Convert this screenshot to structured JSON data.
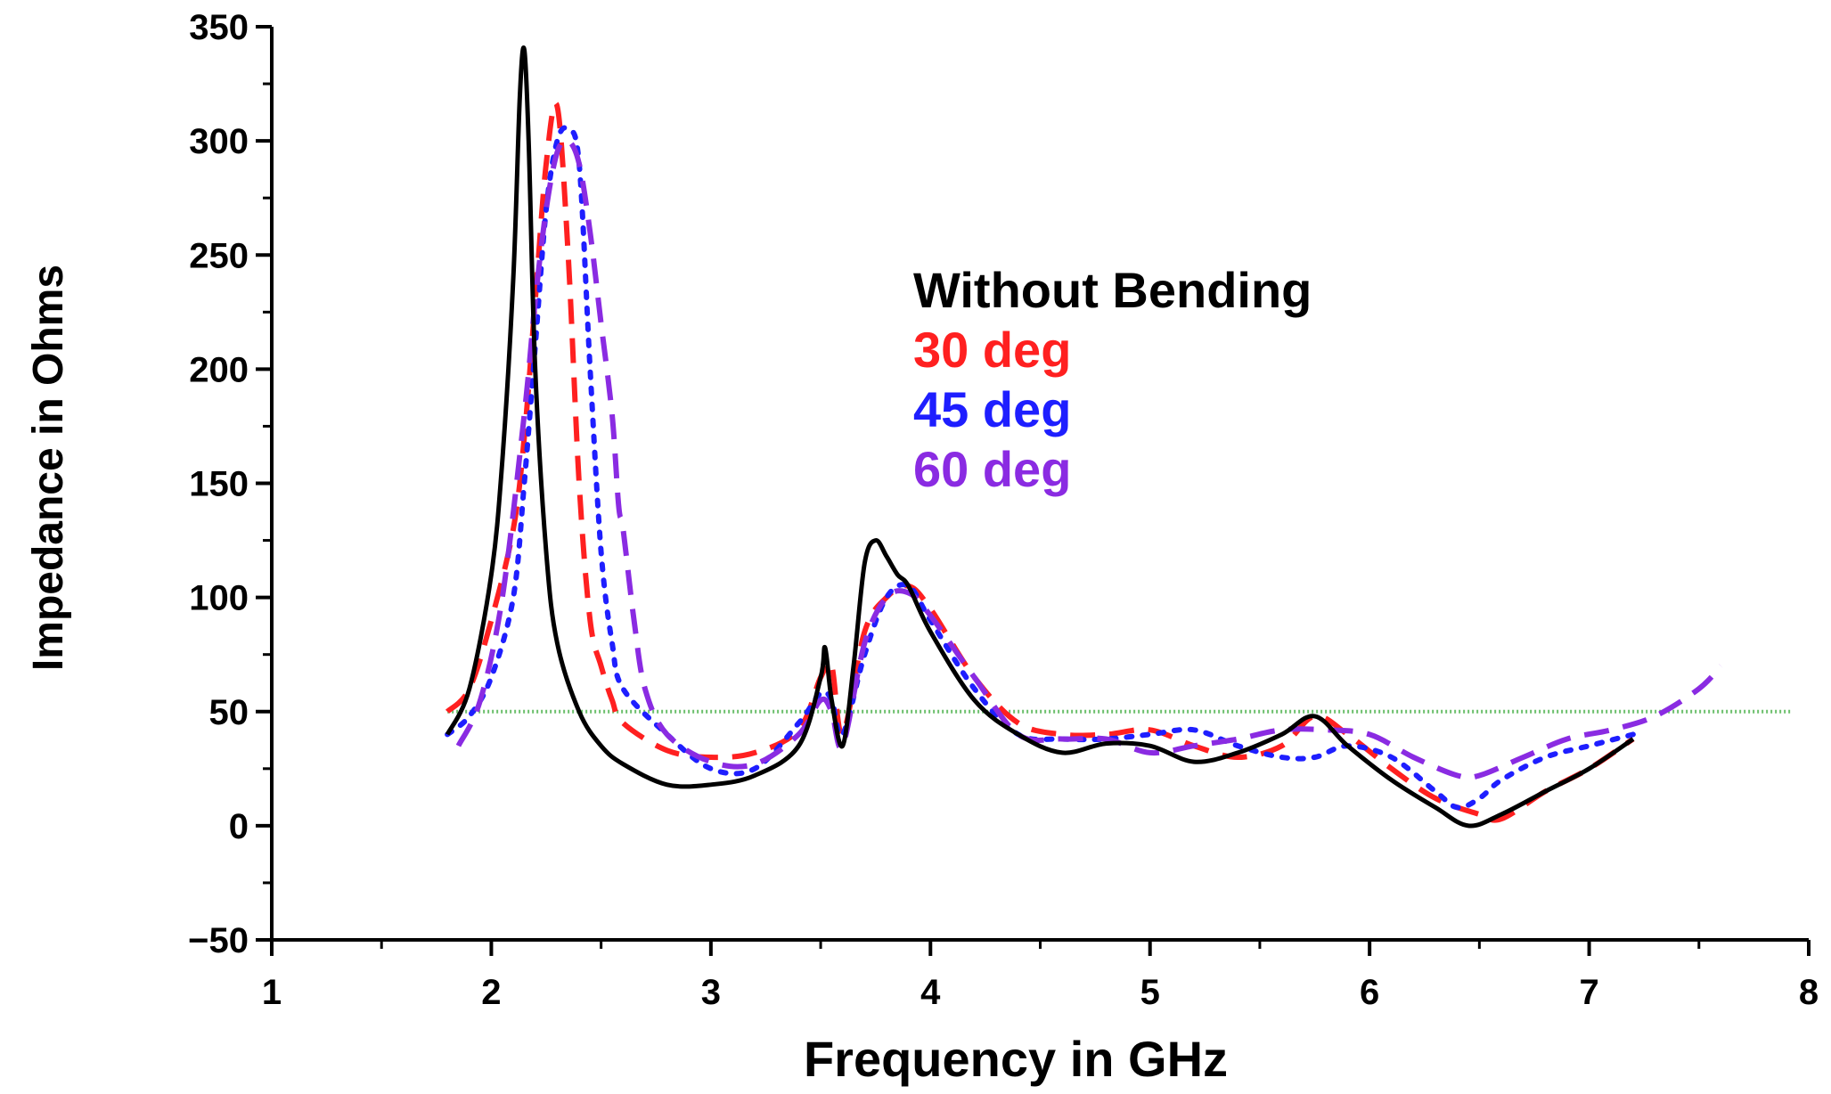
{
  "chart_data": {
    "type": "line",
    "title": "",
    "xlabel": "Frequency in GHz",
    "ylabel": "Impedance in Ohms",
    "xlim": [
      1,
      8
    ],
    "ylim": [
      -50,
      350
    ],
    "xticks": [
      1,
      2,
      3,
      4,
      5,
      6,
      7,
      8
    ],
    "yticks": [
      -50,
      0,
      50,
      100,
      150,
      200,
      250,
      300,
      350
    ],
    "xtick_labels": [
      "1",
      "2",
      "3",
      "4",
      "5",
      "6",
      "7",
      "8"
    ],
    "ytick_labels": [
      "−50",
      "0",
      "50",
      "100",
      "150",
      "200",
      "250",
      "300",
      "350"
    ],
    "legend_position": "upper-middle",
    "reference_line": {
      "y": 50,
      "color": "#6cbf6c",
      "style": "dotted"
    },
    "series": [
      {
        "name": "Without Bending",
        "color": "#000000",
        "style": "solid",
        "x": [
          1.8,
          1.9,
          2.0,
          2.05,
          2.1,
          2.13,
          2.15,
          2.17,
          2.2,
          2.25,
          2.3,
          2.4,
          2.5,
          2.6,
          2.8,
          3.0,
          3.2,
          3.4,
          3.5,
          3.52,
          3.55,
          3.6,
          3.65,
          3.7,
          3.75,
          3.8,
          3.85,
          3.9,
          4.0,
          4.2,
          4.4,
          4.6,
          4.8,
          5.0,
          5.2,
          5.4,
          5.6,
          5.75,
          5.9,
          6.1,
          6.3,
          6.45,
          6.6,
          6.8,
          7.0,
          7.2
        ],
        "y": [
          40,
          60,
          110,
          160,
          240,
          320,
          340,
          300,
          200,
          120,
          80,
          50,
          35,
          27,
          18,
          18,
          22,
          35,
          65,
          78,
          55,
          35,
          70,
          115,
          125,
          118,
          110,
          105,
          85,
          55,
          40,
          32,
          36,
          35,
          28,
          32,
          40,
          48,
          35,
          20,
          8,
          0,
          5,
          15,
          25,
          38
        ]
      },
      {
        "name": "30 deg",
        "color": "#ff2020",
        "style": "dashed",
        "x": [
          1.8,
          1.9,
          2.0,
          2.1,
          2.15,
          2.2,
          2.25,
          2.3,
          2.35,
          2.4,
          2.45,
          2.5,
          2.55,
          2.6,
          2.8,
          3.0,
          3.2,
          3.4,
          3.5,
          3.55,
          3.6,
          3.7,
          3.8,
          3.9,
          4.0,
          4.2,
          4.4,
          4.6,
          4.8,
          5.0,
          5.2,
          5.4,
          5.6,
          5.75,
          5.9,
          6.1,
          6.3,
          6.5,
          6.6,
          6.8,
          7.0,
          7.2
        ],
        "y": [
          50,
          60,
          90,
          130,
          170,
          230,
          290,
          315,
          250,
          150,
          90,
          70,
          55,
          45,
          33,
          30,
          32,
          42,
          65,
          70,
          40,
          85,
          100,
          105,
          95,
          65,
          45,
          40,
          40,
          42,
          35,
          30,
          35,
          48,
          40,
          25,
          12,
          5,
          3,
          15,
          25,
          38
        ]
      },
      {
        "name": "45 deg",
        "color": "#1e1eff",
        "style": "dotted",
        "x": [
          1.8,
          1.9,
          2.0,
          2.1,
          2.15,
          2.2,
          2.25,
          2.3,
          2.35,
          2.4,
          2.45,
          2.5,
          2.55,
          2.6,
          2.8,
          3.0,
          3.2,
          3.4,
          3.5,
          3.55,
          3.6,
          3.7,
          3.8,
          3.9,
          4.0,
          4.2,
          4.4,
          4.6,
          4.8,
          5.0,
          5.2,
          5.4,
          5.6,
          5.75,
          5.9,
          6.1,
          6.3,
          6.4,
          6.5,
          6.6,
          6.8,
          7.0,
          7.2
        ],
        "y": [
          40,
          48,
          65,
          100,
          150,
          210,
          270,
          300,
          305,
          290,
          200,
          120,
          80,
          60,
          40,
          25,
          25,
          45,
          58,
          55,
          40,
          75,
          100,
          105,
          90,
          60,
          40,
          38,
          38,
          40,
          42,
          35,
          30,
          30,
          35,
          30,
          15,
          8,
          12,
          20,
          30,
          35,
          40
        ]
      },
      {
        "name": "60 deg",
        "color": "#8a2be2",
        "style": "dashed",
        "x": [
          1.85,
          1.95,
          2.05,
          2.15,
          2.2,
          2.25,
          2.3,
          2.35,
          2.4,
          2.45,
          2.5,
          2.55,
          2.58,
          2.6,
          2.65,
          2.7,
          2.8,
          3.0,
          3.2,
          3.4,
          3.5,
          3.55,
          3.6,
          3.7,
          3.8,
          3.9,
          4.0,
          4.2,
          4.4,
          4.6,
          4.8,
          5.0,
          5.2,
          5.4,
          5.6,
          5.8,
          6.0,
          6.2,
          6.4,
          6.5,
          6.7,
          6.9,
          7.1,
          7.3,
          7.5,
          7.6
        ],
        "y": [
          35,
          55,
          100,
          180,
          230,
          270,
          295,
          300,
          290,
          260,
          220,
          180,
          140,
          130,
          90,
          60,
          40,
          28,
          27,
          40,
          55,
          50,
          35,
          80,
          100,
          102,
          92,
          65,
          40,
          38,
          38,
          32,
          35,
          38,
          42,
          42,
          40,
          30,
          22,
          22,
          30,
          38,
          42,
          48,
          60,
          70
        ]
      }
    ]
  }
}
